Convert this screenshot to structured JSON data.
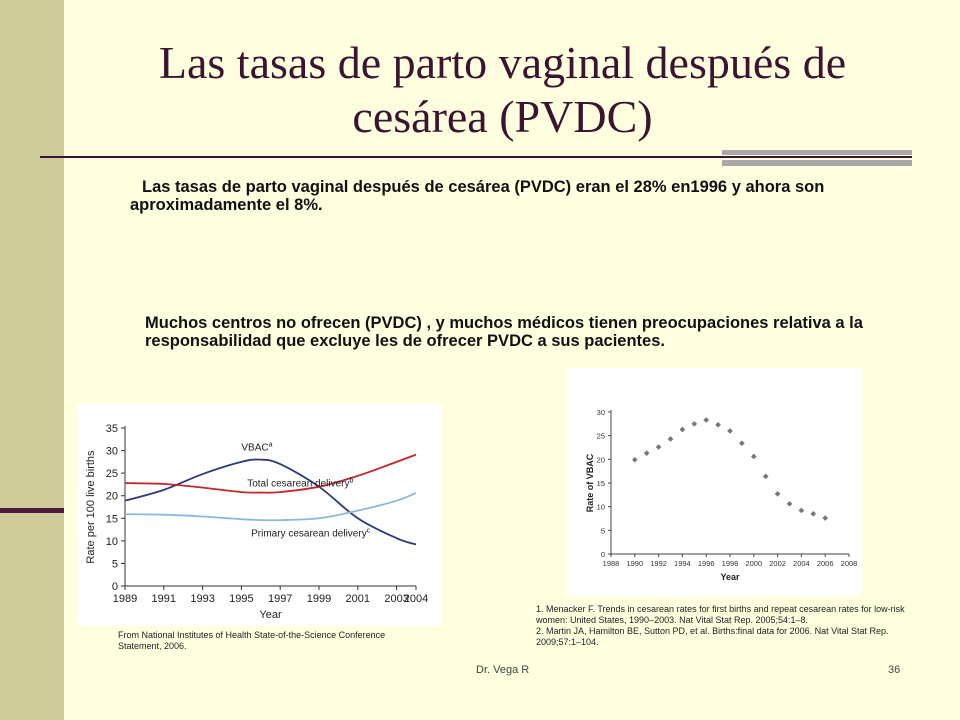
{
  "slide": {
    "title": "Las tasas de parto vaginal después de cesárea (PVDC)",
    "paragraph1": "Las tasas de parto vaginal después de cesárea (PVDC) eran el 28% en1996 y ahora son aproximadamente el 8%.",
    "paragraph2": "Muchos centros no ofrecen (PVDC) , y muchos médicos tienen preocupaciones relativa a la responsabilidad que excluye les de ofrecer PVDC a sus pacientes.",
    "credit": "From National Institutes of Health State-of-the-Science Conference Statement, 2006.",
    "references": [
      "1. Menacker F. Trends in cesarean rates for first births and repeat cesarean rates for low-risk women: United States, 1990–2003. Nat Vital Stat Rep. 2005;54:1–8.",
      "2. Martin JA, Hamilton BE, Sutton PD, et al. Births:final data for 2006. Nat Vital Stat Rep. 2009;57:1–104."
    ],
    "footer_author": "Dr. Vega R",
    "slide_number": "36",
    "colors": {
      "background": "#FFFFE0",
      "sidebar": "#CFCC9C",
      "title": "#3A1430"
    }
  },
  "chart_data": [
    {
      "type": "line",
      "xlabel": "Year",
      "ylabel": "Rate per 100 live births",
      "xlim": [
        1989,
        2004
      ],
      "ylim": [
        0,
        35
      ],
      "x_ticks": [
        "1989",
        "1991",
        "1993",
        "1995",
        "1997",
        "1999",
        "2001",
        "2003",
        "2004"
      ],
      "y_ticks": [
        "0",
        "5",
        "10",
        "15",
        "20",
        "25",
        "30",
        "35"
      ],
      "grid": false,
      "x": [
        1989,
        1991,
        1993,
        1995,
        1996,
        1997,
        1999,
        2001,
        2003,
        2004
      ],
      "series": [
        {
          "name": "VBAC",
          "label": "VBAC",
          "sup": "a",
          "color": "#2B3A78",
          "values": [
            18.9,
            21.3,
            24.8,
            27.5,
            28.0,
            27.0,
            22.0,
            15.0,
            10.6,
            9.2
          ]
        },
        {
          "name": "Total cesarean delivery",
          "label": "Total cesarean delivery",
          "sup": "b",
          "color": "#C0282D",
          "values": [
            22.8,
            22.6,
            21.8,
            20.8,
            20.7,
            20.8,
            22.0,
            24.4,
            27.5,
            29.1
          ]
        },
        {
          "name": "Primary cesarean delivery",
          "label": "Primary cesarean delivery",
          "sup": "c",
          "color": "#8EB8D8",
          "values": [
            15.9,
            15.8,
            15.4,
            14.8,
            14.6,
            14.6,
            15.0,
            16.7,
            18.9,
            20.6
          ]
        }
      ]
    },
    {
      "type": "scatter",
      "xlabel": "Year",
      "ylabel": "Rate of VBAC",
      "xlim": [
        1988,
        2008
      ],
      "ylim": [
        0,
        30
      ],
      "x_ticks": [
        "1988",
        "1990",
        "1992",
        "1994",
        "1996",
        "1998",
        "2000",
        "2002",
        "2004",
        "2006",
        "2008"
      ],
      "y_ticks": [
        "0",
        "5",
        "10",
        "15",
        "20",
        "25",
        "30"
      ],
      "grid": false,
      "x": [
        1990,
        1991,
        1992,
        1993,
        1994,
        1995,
        1996,
        1997,
        1998,
        1999,
        2000,
        2001,
        2002,
        2003,
        2004,
        2005,
        2006
      ],
      "y": [
        19.9,
        21.3,
        22.6,
        24.3,
        26.3,
        27.5,
        28.3,
        27.3,
        26.0,
        23.4,
        20.6,
        16.4,
        12.7,
        10.6,
        9.2,
        8.5,
        7.6
      ],
      "color": "#777777"
    }
  ]
}
